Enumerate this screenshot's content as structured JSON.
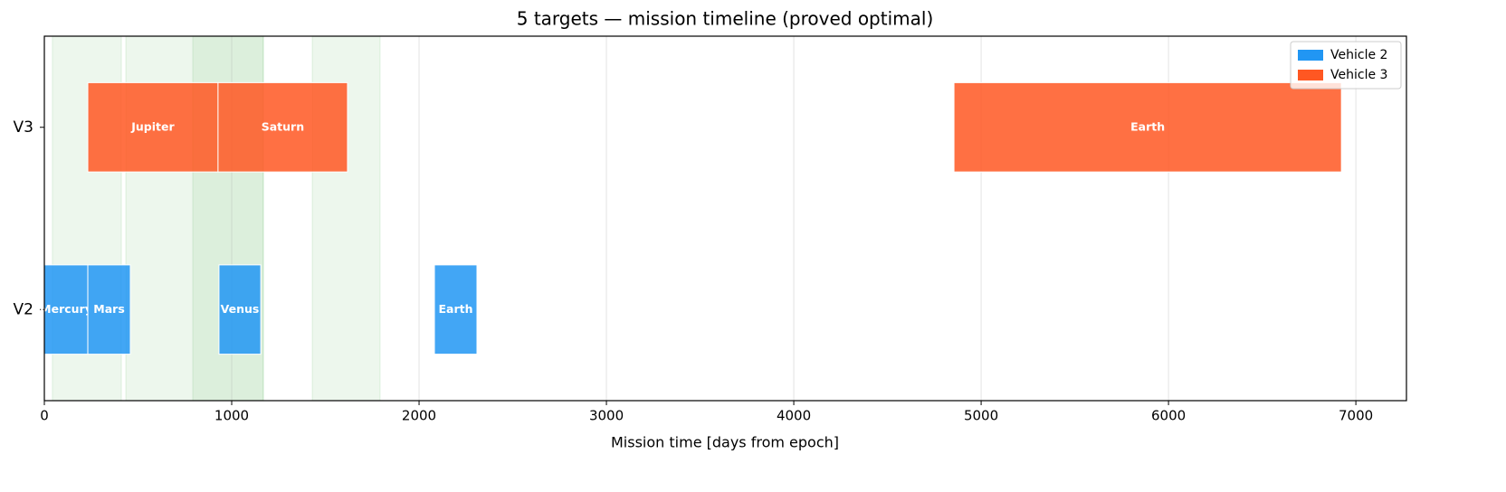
{
  "chart_data": {
    "type": "timeline",
    "title": "5 targets — mission timeline (proved optimal)",
    "x_label": "Mission time [days from epoch]",
    "categories": [
      "V2",
      "V3"
    ],
    "xlim": [
      0,
      7270
    ],
    "xticks": [
      0,
      1000,
      2000,
      3000,
      4000,
      5000,
      6000,
      7000
    ],
    "grid": true,
    "legend": "upper right",
    "window_color": "#4caf50",
    "windows": [
      [
        43,
        411
      ],
      [
        435,
        1169
      ],
      [
        792,
        1169
      ],
      [
        1430,
        1792
      ]
    ],
    "series": [
      {
        "name": "Vehicle 2",
        "color": "#2196f3",
        "labels": [
          "Mercury",
          "Mars",
          "Venus",
          "Earth"
        ],
        "starts": [
          0,
          232,
          932,
          2082
        ],
        "ends": [
          232,
          459,
          1155,
          2309
        ]
      },
      {
        "name": "Vehicle 3",
        "color": "#ff5722",
        "labels": [
          "Jupiter",
          "Saturn",
          "Earth"
        ],
        "starts": [
          232,
          927,
          4855
        ],
        "ends": [
          927,
          1618,
          6923
        ]
      }
    ]
  }
}
